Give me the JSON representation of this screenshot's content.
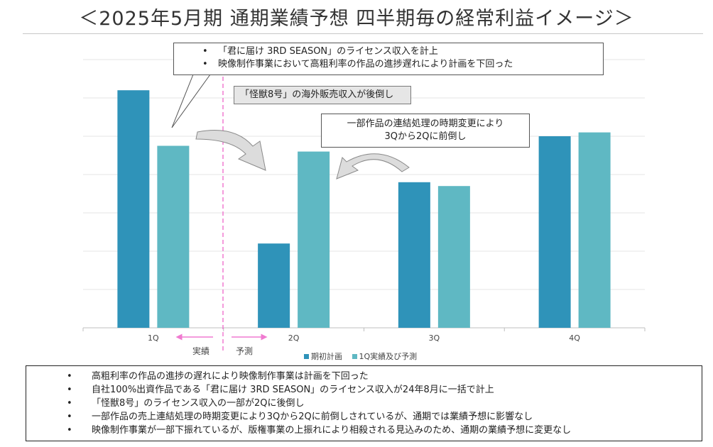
{
  "title": "＜2025年5月期 通期業績予想 四半期毎の経常利益イメージ＞",
  "colors": {
    "plan": "#2f93b9",
    "forecast": "#5fb8c3",
    "arrow": "#dcdcdc",
    "divider": "#f07ad0"
  },
  "chart_data": {
    "type": "bar",
    "categories": [
      "1Q",
      "2Q",
      "3Q",
      "4Q"
    ],
    "series": [
      {
        "name": "期初計画",
        "values": [
          6.2,
          2.2,
          3.8,
          5.0
        ]
      },
      {
        "name": "1Q実績及び予測",
        "values": [
          4.75,
          4.6,
          3.7,
          5.1
        ]
      }
    ],
    "ylim": [
      0,
      7
    ],
    "grid": true,
    "legend_position": "bottom",
    "y_tick_labels_shown": false
  },
  "period_labels": {
    "actual": "実績",
    "forecast": "予測"
  },
  "callouts": {
    "top": [
      "「君に届け 3RD SEASON」のライセンス収入を計上",
      "映像制作事業において高粗利率の作品の進捗遅れにより計画を下回った"
    ],
    "kaiju": "「怪獣8号」の海外販売収入が後倒し",
    "shift": [
      "一部作品の連結処理の時期変更により",
      "3Qから2Qに前倒し"
    ]
  },
  "bullet_symbol": "•",
  "summary": [
    "高粗利率の作品の進捗の遅れにより映像制作事業は計画を下回った",
    "自社100%出資作品である「君に届け 3RD SEASON」のライセンス収入が24年8月に一括で計上",
    "「怪獣8号」のライセンス収入の一部が2Qに後倒し",
    "一部作品の売上連結処理の時期変更により3Qから2Qに前倒しされているが、通期では業績予想に影響なし",
    "映像制作事業が一部下振れているが、版権事業の上振れにより相殺される見込みのため、通期の業績予想に変更なし"
  ]
}
